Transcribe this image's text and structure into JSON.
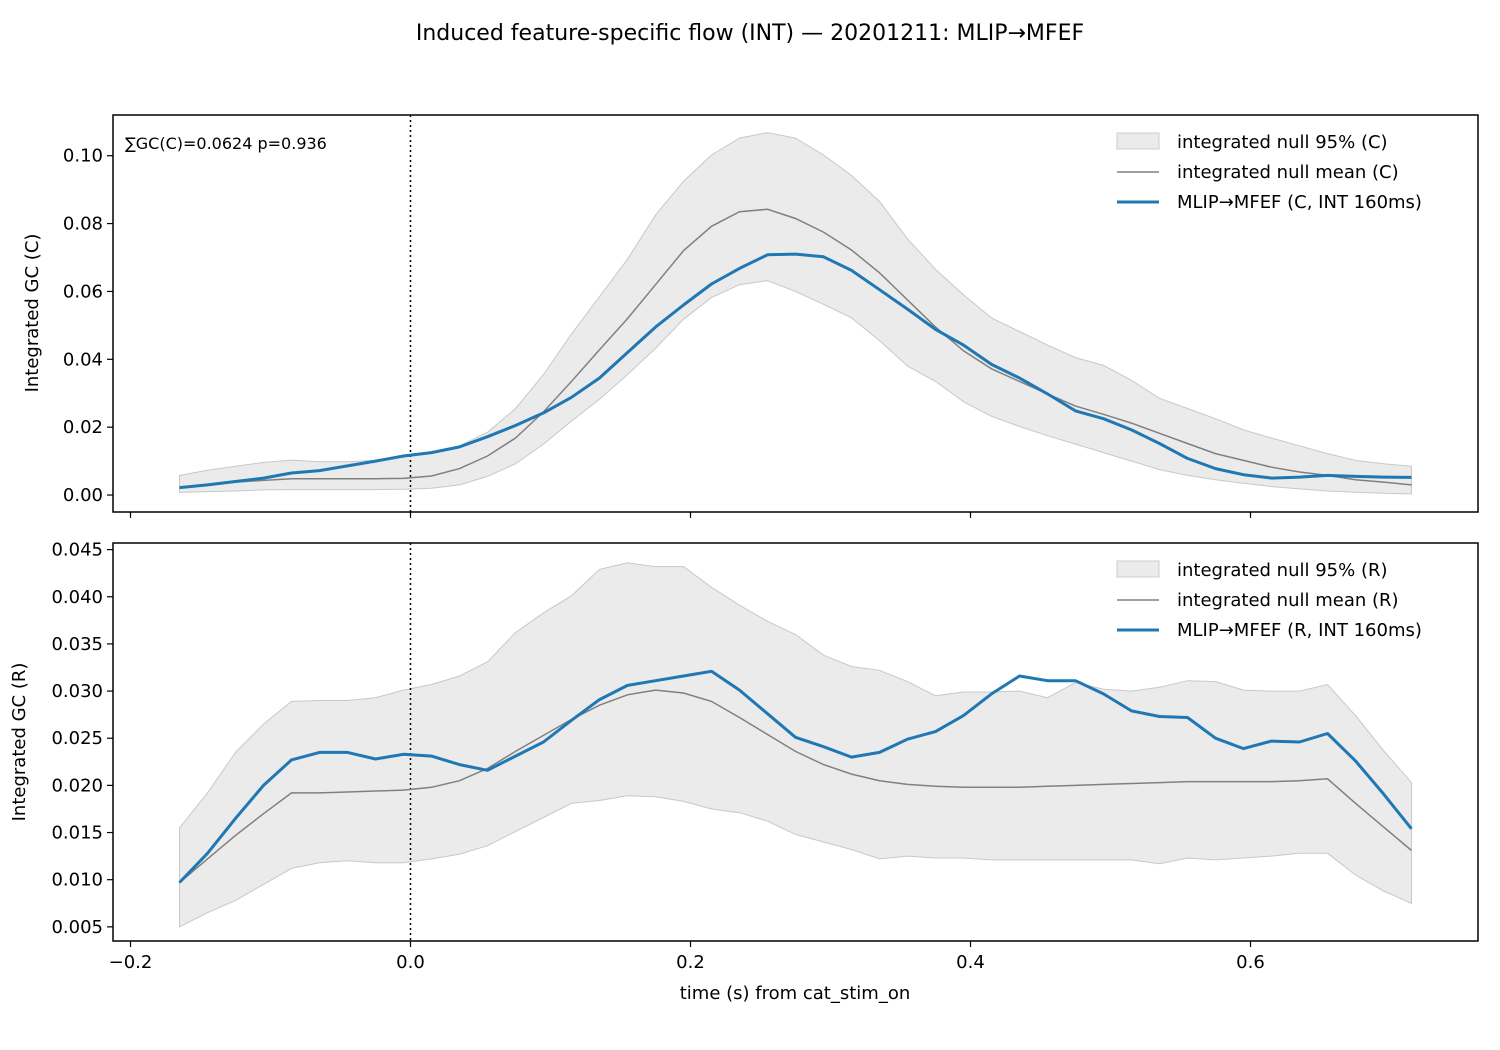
{
  "figure_title": "Induced feature-specific flow (INT) — 20201211: MLIP→MFEF",
  "x_axis_label": "time (s) from cat_stim_on",
  "colors": {
    "observed": "#1f77b4",
    "null_mean": "#808080",
    "null_band": "#d3d3d3",
    "frame": "#000000"
  },
  "chart_data": [
    {
      "type": "line",
      "ylabel": "Integrated GC (C)",
      "annotation": "∑GC(C)=0.0624  p=0.936",
      "xlim": [
        -0.2125,
        0.7625
      ],
      "ylim": [
        -0.005,
        0.112
      ],
      "xticks": [
        -0.2,
        0.0,
        0.2,
        0.4,
        0.6
      ],
      "xtick_labels": [],
      "yticks": [
        0.0,
        0.02,
        0.04,
        0.06,
        0.08,
        0.1
      ],
      "ytick_labels": [
        "0.00",
        "0.02",
        "0.04",
        "0.06",
        "0.08",
        "0.10"
      ],
      "vline_x": 0.0,
      "legend_position": "upper right",
      "legend": {
        "band": "integrated null 95% (C)",
        "mean": "integrated null mean (C)",
        "observed": "MLIP→MFEF (C, INT 160ms)"
      },
      "x": [
        -0.165,
        -0.145,
        -0.125,
        -0.105,
        -0.085,
        -0.065,
        -0.045,
        -0.025,
        -0.005,
        0.015,
        0.035,
        0.055,
        0.075,
        0.095,
        0.115,
        0.135,
        0.155,
        0.175,
        0.195,
        0.215,
        0.235,
        0.255,
        0.275,
        0.295,
        0.315,
        0.335,
        0.355,
        0.375,
        0.395,
        0.415,
        0.435,
        0.455,
        0.475,
        0.495,
        0.515,
        0.535,
        0.555,
        0.575,
        0.595,
        0.615,
        0.635,
        0.655,
        0.675,
        0.695,
        0.715
      ],
      "series": [
        {
          "role": "band",
          "upper": [
            0.0058,
            0.0073,
            0.0085,
            0.0096,
            0.0103,
            0.0098,
            0.0098,
            0.0102,
            0.0112,
            0.0125,
            0.0145,
            0.0185,
            0.0255,
            0.0355,
            0.0475,
            0.0585,
            0.0695,
            0.0825,
            0.0925,
            0.1002,
            0.1052,
            0.1068,
            0.1052,
            0.1002,
            0.0942,
            0.0865,
            0.0755,
            0.0665,
            0.059,
            0.0522,
            0.0482,
            0.0442,
            0.0405,
            0.0382,
            0.0338,
            0.0285,
            0.0255,
            0.0225,
            0.0192,
            0.0168,
            0.0145,
            0.0122,
            0.0102,
            0.0092,
            0.0085
          ],
          "lower": [
            0.0008,
            0.001,
            0.0012,
            0.0015,
            0.0016,
            0.0016,
            0.0016,
            0.0016,
            0.0017,
            0.002,
            0.003,
            0.0055,
            0.0092,
            0.015,
            0.0218,
            0.0282,
            0.0355,
            0.0432,
            0.0518,
            0.0582,
            0.062,
            0.0632,
            0.06,
            0.0562,
            0.0522,
            0.0455,
            0.038,
            0.0335,
            0.0275,
            0.0232,
            0.0202,
            0.0175,
            0.015,
            0.0125,
            0.01,
            0.0075,
            0.0058,
            0.0045,
            0.0035,
            0.0025,
            0.0018,
            0.0012,
            0.0008,
            0.0005,
            0.0003
          ]
        },
        {
          "role": "mean",
          "values": [
            0.0022,
            0.0032,
            0.0038,
            0.0043,
            0.0048,
            0.0048,
            0.0048,
            0.0048,
            0.0049,
            0.0056,
            0.0078,
            0.0115,
            0.0168,
            0.0245,
            0.0335,
            0.0428,
            0.052,
            0.062,
            0.072,
            0.0792,
            0.0835,
            0.0842,
            0.0815,
            0.0775,
            0.0722,
            0.0655,
            0.0575,
            0.0495,
            0.0425,
            0.0372,
            0.0335,
            0.0298,
            0.0262,
            0.0238,
            0.0212,
            0.0182,
            0.0152,
            0.0122,
            0.0102,
            0.0082,
            0.0068,
            0.0058,
            0.0045,
            0.0038,
            0.003
          ]
        },
        {
          "role": "observed",
          "values": [
            0.0022,
            0.003,
            0.004,
            0.005,
            0.0065,
            0.0072,
            0.0086,
            0.01,
            0.0115,
            0.0125,
            0.0142,
            0.0172,
            0.0205,
            0.0242,
            0.0288,
            0.0345,
            0.042,
            0.0495,
            0.056,
            0.0622,
            0.0668,
            0.0708,
            0.071,
            0.0702,
            0.0662,
            0.0605,
            0.0548,
            0.0488,
            0.0442,
            0.0385,
            0.0345,
            0.0298,
            0.0248,
            0.0225,
            0.0192,
            0.0152,
            0.0108,
            0.0078,
            0.006,
            0.005,
            0.0053,
            0.0058,
            0.0055,
            0.0053,
            0.0052
          ]
        }
      ]
    },
    {
      "type": "line",
      "ylabel": "Integrated GC (R)",
      "xlim": [
        -0.2125,
        0.7625
      ],
      "ylim": [
        0.0035,
        0.0457
      ],
      "xticks": [
        -0.2,
        0.0,
        0.2,
        0.4,
        0.6
      ],
      "xtick_labels": [
        "−0.2",
        "0.0",
        "0.2",
        "0.4",
        "0.6"
      ],
      "yticks": [
        0.005,
        0.01,
        0.015,
        0.02,
        0.025,
        0.03,
        0.035,
        0.04,
        0.045
      ],
      "ytick_labels": [
        "0.005",
        "0.010",
        "0.015",
        "0.020",
        "0.025",
        "0.030",
        "0.035",
        "0.040",
        "0.045"
      ],
      "vline_x": 0.0,
      "legend_position": "upper right",
      "legend": {
        "band": "integrated null 95% (R)",
        "mean": "integrated null mean (R)",
        "observed": "MLIP→MFEF (R, INT 160ms)"
      },
      "x": [
        -0.165,
        -0.145,
        -0.125,
        -0.105,
        -0.085,
        -0.065,
        -0.045,
        -0.025,
        -0.005,
        0.015,
        0.035,
        0.055,
        0.075,
        0.095,
        0.115,
        0.135,
        0.155,
        0.175,
        0.195,
        0.215,
        0.235,
        0.255,
        0.275,
        0.295,
        0.315,
        0.335,
        0.355,
        0.375,
        0.395,
        0.415,
        0.435,
        0.455,
        0.475,
        0.495,
        0.515,
        0.535,
        0.555,
        0.575,
        0.595,
        0.615,
        0.635,
        0.655,
        0.675,
        0.695,
        0.715
      ],
      "series": [
        {
          "role": "band",
          "upper": [
            0.0155,
            0.0192,
            0.0235,
            0.0265,
            0.0289,
            0.029,
            0.029,
            0.0293,
            0.0301,
            0.0307,
            0.0316,
            0.0331,
            0.0362,
            0.0383,
            0.0401,
            0.0429,
            0.0436,
            0.0432,
            0.0432,
            0.041,
            0.0391,
            0.0374,
            0.036,
            0.0338,
            0.0326,
            0.0322,
            0.031,
            0.0295,
            0.0299,
            0.0299,
            0.03,
            0.0293,
            0.0309,
            0.0302,
            0.03,
            0.0304,
            0.0311,
            0.031,
            0.0301,
            0.03,
            0.03,
            0.0307,
            0.0274,
            0.0237,
            0.0203
          ],
          "lower": [
            0.005,
            0.0065,
            0.0078,
            0.0095,
            0.0112,
            0.0118,
            0.012,
            0.0118,
            0.0118,
            0.0122,
            0.0127,
            0.0136,
            0.0151,
            0.0166,
            0.0181,
            0.0184,
            0.0189,
            0.0188,
            0.0183,
            0.0175,
            0.0171,
            0.0162,
            0.0148,
            0.014,
            0.0132,
            0.0122,
            0.0125,
            0.0123,
            0.0123,
            0.0121,
            0.0121,
            0.0121,
            0.0121,
            0.0121,
            0.0121,
            0.0117,
            0.0123,
            0.0121,
            0.0123,
            0.0125,
            0.0128,
            0.0128,
            0.0105,
            0.0088,
            0.0075
          ]
        },
        {
          "role": "mean",
          "values": [
            0.0097,
            0.0122,
            0.0147,
            0.017,
            0.0192,
            0.0192,
            0.0193,
            0.0194,
            0.0195,
            0.0198,
            0.0205,
            0.0218,
            0.0236,
            0.0253,
            0.027,
            0.0285,
            0.0296,
            0.0301,
            0.0298,
            0.0289,
            0.0272,
            0.0254,
            0.0236,
            0.0222,
            0.0212,
            0.0205,
            0.0201,
            0.0199,
            0.0198,
            0.0198,
            0.0198,
            0.0199,
            0.02,
            0.0201,
            0.0202,
            0.0203,
            0.0204,
            0.0204,
            0.0204,
            0.0204,
            0.0205,
            0.0207,
            0.0181,
            0.0156,
            0.0131
          ]
        },
        {
          "role": "observed",
          "values": [
            0.0097,
            0.0128,
            0.0165,
            0.02,
            0.0227,
            0.0235,
            0.0235,
            0.0228,
            0.0233,
            0.0231,
            0.0222,
            0.0216,
            0.0231,
            0.0246,
            0.0269,
            0.0291,
            0.0306,
            0.0311,
            0.0316,
            0.0321,
            0.0301,
            0.0276,
            0.0251,
            0.0241,
            0.023,
            0.0235,
            0.0249,
            0.0257,
            0.0274,
            0.0297,
            0.0316,
            0.0311,
            0.0311,
            0.0297,
            0.0279,
            0.0273,
            0.0272,
            0.025,
            0.0239,
            0.0247,
            0.0246,
            0.0255,
            0.0226,
            0.0191,
            0.0154
          ]
        }
      ]
    }
  ]
}
